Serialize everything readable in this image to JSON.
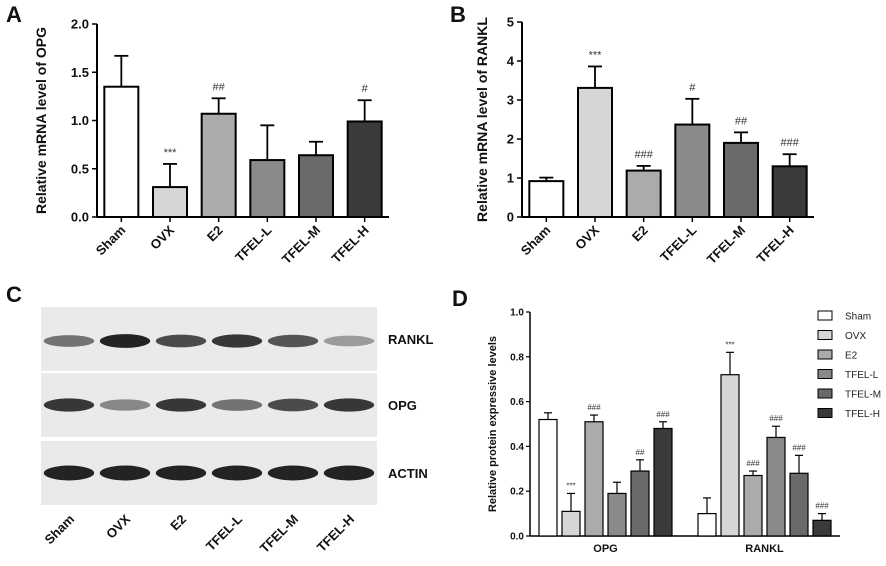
{
  "chart_data": [
    {
      "panel": "A",
      "type": "bar",
      "ylabel": "Relative mRNA level of OPG",
      "categories": [
        "Sham",
        "OVX",
        "E2",
        "TFEL-L",
        "TFEL-M",
        "TFEL-H"
      ],
      "values": [
        1.35,
        0.31,
        1.07,
        0.59,
        0.64,
        0.99
      ],
      "errors": [
        0.32,
        0.24,
        0.16,
        0.36,
        0.14,
        0.22
      ],
      "significance": [
        "",
        "***",
        "##",
        "",
        "",
        "#"
      ],
      "colors": [
        "#ffffff",
        "#d6d6d6",
        "#ababab",
        "#8a8a8a",
        "#6a6a6a",
        "#3a3a3a"
      ],
      "ylim": [
        0,
        2.0
      ],
      "yticks": [
        "0.0",
        "0.5",
        "1.0",
        "1.5",
        "2.0"
      ]
    },
    {
      "panel": "B",
      "type": "bar",
      "ylabel": "Relative mRNA level of RANKL",
      "categories": [
        "Sham",
        "OVX",
        "E2",
        "TFEL-L",
        "TFEL-M",
        "TFEL-H"
      ],
      "values": [
        0.92,
        3.31,
        1.19,
        2.37,
        1.9,
        1.3
      ],
      "errors": [
        0.09,
        0.55,
        0.12,
        0.66,
        0.27,
        0.31
      ],
      "significance": [
        "",
        "***",
        "###",
        "#",
        "##",
        "###"
      ],
      "colors": [
        "#ffffff",
        "#d6d6d6",
        "#ababab",
        "#8a8a8a",
        "#6a6a6a",
        "#3a3a3a"
      ],
      "ylim": [
        0,
        5
      ],
      "yticks": [
        "0",
        "1",
        "2",
        "3",
        "4",
        "5"
      ]
    },
    {
      "panel": "D",
      "type": "bar",
      "ylabel": "Relative protein expressive levels",
      "groups": [
        "OPG",
        "RANKL"
      ],
      "series": [
        {
          "name": "Sham",
          "values": [
            0.52,
            0.1
          ],
          "errors": [
            0.03,
            0.07
          ],
          "significance": [
            "",
            ""
          ],
          "color": "#ffffff"
        },
        {
          "name": "OVX",
          "values": [
            0.11,
            0.72
          ],
          "errors": [
            0.08,
            0.1
          ],
          "significance": [
            "***",
            "***"
          ],
          "color": "#d6d6d6"
        },
        {
          "name": "E2",
          "values": [
            0.51,
            0.27
          ],
          "errors": [
            0.03,
            0.02
          ],
          "significance": [
            "###",
            "###"
          ],
          "color": "#ababab"
        },
        {
          "name": "TFEL-L",
          "values": [
            0.19,
            0.44
          ],
          "errors": [
            0.05,
            0.05
          ],
          "significance": [
            "",
            "###"
          ],
          "color": "#8a8a8a"
        },
        {
          "name": "TFEL-M",
          "values": [
            0.29,
            0.28
          ],
          "errors": [
            0.05,
            0.08
          ],
          "significance": [
            "##",
            "###"
          ],
          "color": "#6a6a6a"
        },
        {
          "name": "TFEL-H",
          "values": [
            0.48,
            0.07
          ],
          "errors": [
            0.03,
            0.03
          ],
          "significance": [
            "###",
            "###"
          ],
          "color": "#3a3a3a"
        }
      ],
      "ylim": [
        0,
        1.0
      ],
      "yticks": [
        "0.0",
        "0.2",
        "0.4",
        "0.6",
        "0.8",
        "1.0"
      ],
      "legend_position": "top-right"
    }
  ],
  "panel_labels": {
    "a": "A",
    "b": "B",
    "c": "C",
    "d": "D"
  },
  "western_blot": {
    "lanes": [
      "Sham",
      "OVX",
      "E2",
      "TFEL-L",
      "TFEL-M",
      "TFEL-H"
    ],
    "rows": [
      {
        "label": "RANKL",
        "intensity": [
          0.55,
          0.95,
          0.75,
          0.85,
          0.7,
          0.35
        ]
      },
      {
        "label": "OPG",
        "intensity": [
          0.85,
          0.45,
          0.85,
          0.55,
          0.75,
          0.85
        ]
      },
      {
        "label": "ACTIN",
        "intensity": [
          0.95,
          0.95,
          0.95,
          0.95,
          0.95,
          0.95
        ]
      }
    ]
  }
}
